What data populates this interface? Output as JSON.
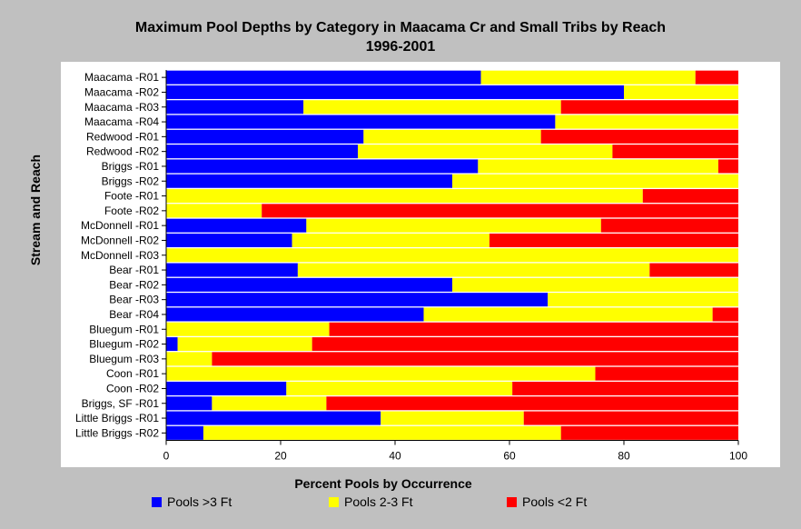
{
  "chart_data": {
    "type": "bar",
    "orientation": "horizontal",
    "stacked": true,
    "title": "Maximum Pool Depths by Category in Maacama Cr and Small Tribs by Reach",
    "subtitle": "1996-2001",
    "xlabel": "Percent Pools by Occurrence",
    "ylabel": "Stream and Reach",
    "xlim": [
      0,
      100
    ],
    "xticks": [
      0,
      20,
      40,
      60,
      80,
      100
    ],
    "grid": false,
    "legend_position": "bottom",
    "categories": [
      "Maacama -R01",
      "Maacama -R02",
      "Maacama -R03",
      "Maacama -R04",
      "Redwood -R01",
      "Redwood -R02",
      "Briggs -R01",
      "Briggs -R02",
      "Foote -R01",
      "Foote -R02",
      "McDonnell -R01",
      "McDonnell -R02",
      "McDonnell -R03",
      "Bear -R01",
      "Bear -R02",
      "Bear -R03",
      "Bear -R04",
      "Bluegum -R01",
      "Bluegum -R02",
      "Bluegum -R03",
      "Coon -R01",
      "Coon -R02",
      "Briggs, SF -R01",
      "Little Briggs -R01",
      "Little Briggs -R02"
    ],
    "series": [
      {
        "name": "Pools >3 Ft",
        "color": "#0000ff",
        "values": [
          55,
          80,
          24,
          68,
          34.5,
          33.5,
          54.5,
          50,
          0,
          0,
          24.5,
          22,
          0,
          23,
          50,
          66.7,
          45,
          0,
          2,
          0,
          0,
          21,
          8,
          37.5,
          6.5
        ]
      },
      {
        "name": "Pools 2-3 Ft",
        "color": "#ffff00",
        "values": [
          37.5,
          20,
          45,
          32,
          31,
          44.5,
          42,
          50,
          83.3,
          16.7,
          51.5,
          34.5,
          100,
          61.5,
          50,
          33.3,
          50.5,
          28.5,
          23.5,
          8,
          75,
          39.5,
          20,
          25,
          62.5
        ]
      },
      {
        "name": "Pools <2 Ft",
        "color": "#ff0000",
        "values": [
          7.5,
          0,
          31,
          0,
          34.5,
          22,
          3.5,
          0,
          16.7,
          83.3,
          24,
          43.5,
          0,
          15.5,
          0,
          0,
          4.5,
          71.5,
          74.5,
          92,
          25,
          39.5,
          72,
          37.5,
          31
        ]
      }
    ]
  }
}
